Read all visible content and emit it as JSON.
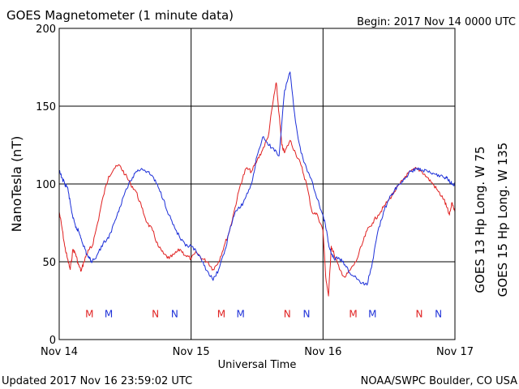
{
  "header": {
    "title": "GOES Magnetometer (1 minute data)",
    "begin": "Begin:  2017 Nov 14 0000 UTC"
  },
  "footer": {
    "updated": "Updated 2017 Nov 16 23:59:02 UTC",
    "credit": "NOAA/SWPC Boulder, CO USA"
  },
  "chart_data": {
    "type": "line",
    "title": "GOES Magnetometer (1 minute data)",
    "xlabel": "Universal Time",
    "ylabel": "NanoTesla (nT)",
    "x_unit": "hours since 2017 Nov 14 0000 UTC",
    "xlim": [
      0,
      72
    ],
    "ylim": [
      0,
      200
    ],
    "yticks": [
      0,
      50,
      100,
      150,
      200
    ],
    "xticks": [
      {
        "hour": 0,
        "label": "Nov 14"
      },
      {
        "hour": 24,
        "label": "Nov 15"
      },
      {
        "hour": 48,
        "label": "Nov 16"
      },
      {
        "hour": 72,
        "label": "Nov 17"
      }
    ],
    "grid": true,
    "series": [
      {
        "name": "GOES 13 Hp  Long. W 75",
        "color": "#e02020",
        "x": [
          0,
          0.5,
          1,
          1.5,
          2,
          2.5,
          3,
          3.5,
          4,
          4.5,
          5,
          5.5,
          6,
          7,
          8,
          9,
          10,
          11,
          12,
          13,
          14,
          15,
          16,
          17,
          18,
          19,
          20,
          21,
          22,
          23,
          24,
          25,
          26,
          27,
          28,
          29,
          30,
          31,
          32,
          33,
          34,
          35,
          36,
          37,
          38,
          39,
          39.5,
          40,
          40.5,
          41,
          42,
          43,
          44,
          45,
          46,
          47,
          48,
          48.5,
          49,
          49.5,
          50,
          51,
          52,
          53,
          54,
          55,
          56,
          57,
          58,
          59,
          60,
          61,
          62,
          63,
          64,
          65,
          66,
          67,
          68,
          69,
          70,
          70.5,
          71,
          71.5,
          72
        ],
        "y": [
          82,
          72,
          60,
          52,
          45,
          58,
          55,
          48,
          44,
          50,
          55,
          58,
          60,
          75,
          92,
          105,
          110,
          112,
          106,
          100,
          95,
          85,
          75,
          70,
          60,
          55,
          52,
          55,
          58,
          54,
          52,
          56,
          52,
          50,
          45,
          50,
          60,
          70,
          85,
          100,
          110,
          108,
          115,
          122,
          130,
          155,
          165,
          145,
          125,
          120,
          128,
          120,
          112,
          100,
          82,
          80,
          70,
          40,
          28,
          60,
          55,
          45,
          40,
          45,
          50,
          60,
          70,
          75,
          80,
          85,
          90,
          95,
          100,
          105,
          108,
          110,
          108,
          104,
          100,
          95,
          90,
          85,
          80,
          88,
          82
        ]
      },
      {
        "name": "GOES 15 Hp  Long. W 135",
        "color": "#1c2fd8",
        "x": [
          0,
          0.5,
          1,
          1.5,
          2,
          2.5,
          3,
          3.5,
          4,
          4.5,
          5,
          5.5,
          6,
          7,
          8,
          9,
          10,
          11,
          12,
          13,
          14,
          15,
          16,
          17,
          18,
          19,
          20,
          21,
          22,
          23,
          24,
          25,
          26,
          27,
          28,
          29,
          30,
          31,
          32,
          33,
          34,
          35,
          36,
          37,
          38,
          39,
          40,
          41,
          42,
          43,
          44,
          45,
          46,
          47,
          48,
          48.5,
          49,
          49.5,
          50,
          51,
          52,
          53,
          54,
          55,
          56,
          57,
          58,
          59,
          60,
          61,
          62,
          63,
          64,
          65,
          66,
          67,
          68,
          69,
          70,
          70.5,
          71,
          71.5,
          72
        ],
        "y": [
          108,
          104,
          100,
          98,
          88,
          78,
          72,
          70,
          65,
          60,
          55,
          52,
          50,
          55,
          62,
          65,
          75,
          85,
          95,
          102,
          108,
          110,
          108,
          105,
          98,
          90,
          80,
          72,
          65,
          60,
          60,
          56,
          50,
          44,
          38,
          45,
          55,
          70,
          82,
          85,
          92,
          100,
          118,
          130,
          125,
          123,
          118,
          160,
          172,
          140,
          120,
          110,
          102,
          90,
          80,
          72,
          62,
          55,
          52,
          52,
          48,
          42,
          40,
          36,
          35,
          50,
          70,
          82,
          90,
          96,
          100,
          104,
          108,
          110,
          109,
          108,
          107,
          106,
          104,
          104,
          102,
          100,
          100
        ]
      }
    ],
    "markers": {
      "y_value": 17,
      "items": [
        {
          "hour": 5.5,
          "letter": "M",
          "series": 0
        },
        {
          "hour": 9,
          "letter": "M",
          "series": 1
        },
        {
          "hour": 17.5,
          "letter": "N",
          "series": 0
        },
        {
          "hour": 21,
          "letter": "N",
          "series": 1
        },
        {
          "hour": 29.5,
          "letter": "M",
          "series": 0
        },
        {
          "hour": 33,
          "letter": "M",
          "series": 1
        },
        {
          "hour": 41.5,
          "letter": "N",
          "series": 0
        },
        {
          "hour": 45,
          "letter": "N",
          "series": 1
        },
        {
          "hour": 53.5,
          "letter": "M",
          "series": 0
        },
        {
          "hour": 57,
          "letter": "M",
          "series": 1
        },
        {
          "hour": 65.5,
          "letter": "N",
          "series": 0
        },
        {
          "hour": 69,
          "letter": "N",
          "series": 1
        }
      ]
    }
  }
}
